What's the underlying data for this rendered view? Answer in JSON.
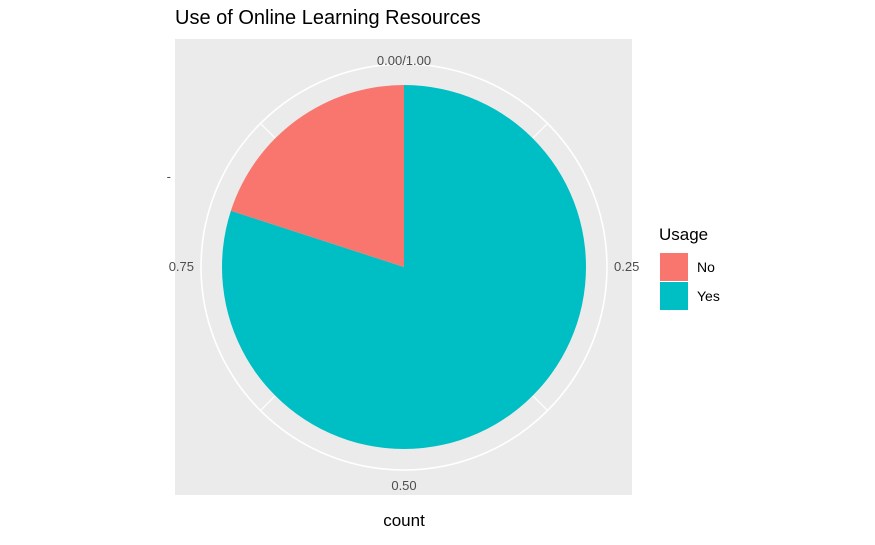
{
  "chart_data": {
    "type": "pie",
    "title": "Use of Online Learning Resources",
    "xlabel": "count",
    "ylabel": "",
    "y_tick_labels": [
      "-"
    ],
    "angle_ticks": [
      {
        "value": 0.0,
        "label": "0.00/1.00"
      },
      {
        "value": 0.25,
        "label": "0.25"
      },
      {
        "value": 0.5,
        "label": "0.50"
      },
      {
        "value": 0.75,
        "label": "0.75"
      }
    ],
    "categories": [
      "No",
      "Yes"
    ],
    "values": [
      0.2,
      0.8
    ],
    "colors": [
      "#F8766D",
      "#00BFC4"
    ],
    "legend": {
      "title": "Usage",
      "position": "right",
      "items": [
        "No",
        "Yes"
      ]
    },
    "panel_background": "#EBEBEB",
    "grid_color": "#FFFFFF",
    "grid": true
  }
}
